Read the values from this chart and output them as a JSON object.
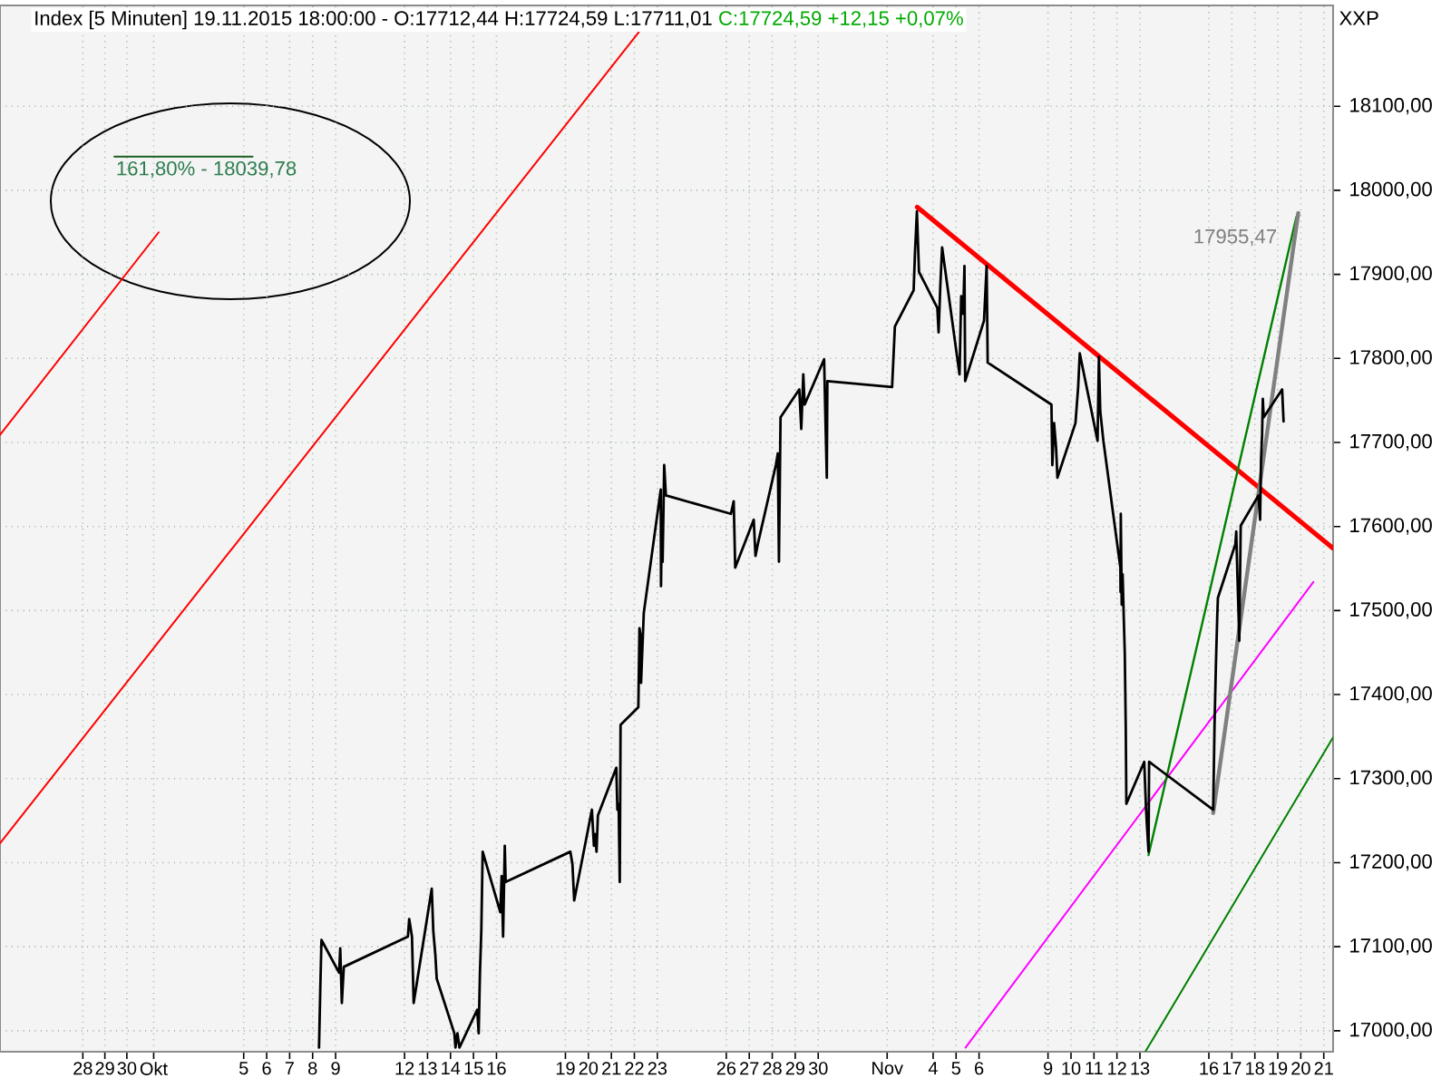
{
  "chart_data": {
    "type": "line",
    "title": "Index [5 Minuten] 19.11.2015 18:00:00 - O:17712,44 H:17724,59 L:17711,01",
    "subtitle": "C:17724,59 +12,15 +0,07%",
    "ylabel": "XXP",
    "xlim": [
      "2015-09-24T21:30",
      "2015-11-21T21:45"
    ],
    "ylim": [
      16975,
      18220
    ],
    "xticks": [
      {
        "value": "2015-09-28T12:00",
        "label": "28"
      },
      {
        "value": "2015-09-29T11:00",
        "label": "29"
      },
      {
        "value": "2015-09-30T10:00",
        "label": "30"
      },
      {
        "value": "2015-10-01T14:00",
        "label": "Okt"
      },
      {
        "value": "2015-10-05T12:00",
        "label": "5"
      },
      {
        "value": "2015-10-06T12:00",
        "label": "6"
      },
      {
        "value": "2015-10-07T12:00",
        "label": "7"
      },
      {
        "value": "2015-10-08T12:00",
        "label": "8"
      },
      {
        "value": "2015-10-09T12:00",
        "label": "9"
      },
      {
        "value": "2015-10-12T12:00",
        "label": "12"
      },
      {
        "value": "2015-10-13T12:00",
        "label": "13"
      },
      {
        "value": "2015-10-14T12:00",
        "label": "14"
      },
      {
        "value": "2015-10-15T12:00",
        "label": "15"
      },
      {
        "value": "2015-10-16T12:00",
        "label": "16"
      },
      {
        "value": "2015-10-19T12:00",
        "label": "19"
      },
      {
        "value": "2015-10-20T12:00",
        "label": "20"
      },
      {
        "value": "2015-10-21T12:00",
        "label": "21"
      },
      {
        "value": "2015-10-22T12:00",
        "label": "22"
      },
      {
        "value": "2015-10-23T12:00",
        "label": "23"
      },
      {
        "value": "2015-10-26T12:00",
        "label": "26"
      },
      {
        "value": "2015-10-27T12:00",
        "label": "27"
      },
      {
        "value": "2015-10-28T12:00",
        "label": "28"
      },
      {
        "value": "2015-10-29T12:00",
        "label": "29"
      },
      {
        "value": "2015-10-30T12:00",
        "label": "30"
      },
      {
        "value": "2015-11-02T12:00",
        "label": "Nov"
      },
      {
        "value": "2015-11-04T12:00",
        "label": "4"
      },
      {
        "value": "2015-11-05T12:00",
        "label": "5"
      },
      {
        "value": "2015-11-06T12:00",
        "label": "6"
      },
      {
        "value": "2015-11-09T12:00",
        "label": "9"
      },
      {
        "value": "2015-11-10T12:00",
        "label": "10"
      },
      {
        "value": "2015-11-11T12:00",
        "label": "11"
      },
      {
        "value": "2015-11-12T12:00",
        "label": "12"
      },
      {
        "value": "2015-11-13T12:00",
        "label": "13"
      },
      {
        "value": "2015-11-16T12:00",
        "label": "16"
      },
      {
        "value": "2015-11-17T12:00",
        "label": "17"
      },
      {
        "value": "2015-11-18T12:00",
        "label": "18"
      },
      {
        "value": "2015-11-19T12:00",
        "label": "19"
      },
      {
        "value": "2015-11-20T12:00",
        "label": "20"
      },
      {
        "value": "2015-11-21T12:00",
        "label": "21"
      }
    ],
    "yticks": [
      {
        "value": 17000,
        "label": "17000,00"
      },
      {
        "value": 17100,
        "label": "17100,00"
      },
      {
        "value": 17200,
        "label": "17200,00"
      },
      {
        "value": 17300,
        "label": "17300,00"
      },
      {
        "value": 17400,
        "label": "17400,00"
      },
      {
        "value": 17500,
        "label": "17500,00"
      },
      {
        "value": 17600,
        "label": "17600,00"
      },
      {
        "value": 17700,
        "label": "17700,00"
      },
      {
        "value": 17800,
        "label": "17800,00"
      },
      {
        "value": 17900,
        "label": "17900,00"
      },
      {
        "value": 18000,
        "label": "18000,00"
      },
      {
        "value": 18100,
        "label": "18100,00"
      }
    ],
    "grid": true,
    "series": [
      {
        "color": "#ff0000",
        "x": [
          "2015-11-03T19:25",
          "2015-11-21T21:45"
        ],
        "values": [
          17980,
          17574
        ]
      },
      {
        "color": "#ff0000",
        "x": [
          "2015-09-24T21:30",
          "2015-10-22T16:30"
        ],
        "values": [
          17223,
          18188
        ]
      },
      {
        "color": "#ff0000",
        "x": [
          "2015-09-24T21:30",
          "2015-10-01T19:10"
        ],
        "values": [
          17709,
          17950
        ]
      },
      {
        "color": "#ff00ff",
        "x": [
          "2015-11-05T21:55",
          "2015-11-21T01:10"
        ],
        "values": [
          16980,
          17534
        ]
      },
      {
        "color": "#008000",
        "x": [
          "2015-11-13T18:10",
          "2015-11-21T21:45"
        ],
        "values": [
          16976,
          17349
        ]
      },
      {
        "color": "#008000",
        "x": [
          "2015-11-13T21:00",
          "2015-11-20T07:20"
        ],
        "values": [
          17209,
          17968
        ]
      },
      {
        "color": "#808080",
        "x": [
          "2015-11-16T16:30",
          "2015-11-20T09:20"
        ],
        "values": [
          17259,
          17973
        ]
      },
      {
        "color": "#1b5e20",
        "x": [
          "2015-09-29T20:55",
          "2015-10-05T21:15"
        ],
        "values": [
          18040,
          18040
        ]
      },
      {
        "color": "#000000",
        "x": [
          "2015-10-08T18:40",
          "2015-10-08T20:05",
          "2015-10-08T21:15",
          "2015-10-09T15:40",
          "2015-10-09T16:50",
          "2015-10-09T18:30",
          "2015-10-09T20:35",
          "2015-10-12T15:30",
          "2015-10-12T16:50",
          "2015-10-12T19:45",
          "2015-10-12T21:30",
          "2015-10-13T16:25",
          "2015-10-13T18:00",
          "2015-10-13T20:10",
          "2015-10-13T21:35",
          "2015-10-14T16:00",
          "2015-10-14T17:10",
          "2015-10-14T19:15",
          "2015-10-14T21:20",
          "2015-10-15T15:55",
          "2015-10-15T17:25",
          "2015-10-15T18:45",
          "2015-10-15T20:10",
          "2015-10-15T21:35",
          "2015-10-16T16:00",
          "2015-10-16T17:25",
          "2015-10-16T18:55",
          "2015-10-16T20:40",
          "2015-10-16T21:35",
          "2015-10-19T17:10",
          "2015-10-19T19:20",
          "2015-10-19T21:10",
          "2015-10-20T15:40",
          "2015-10-20T17:45",
          "2015-10-20T19:05",
          "2015-10-20T20:30",
          "2015-10-20T21:55",
          "2015-10-21T17:10",
          "2015-10-21T18:15",
          "2015-10-21T19:35",
          "2015-10-21T20:45",
          "2015-10-21T21:35",
          "2015-10-22T16:10",
          "2015-10-22T17:20",
          "2015-10-22T18:25",
          "2015-10-22T19:00",
          "2015-10-22T21:50",
          "2015-10-23T15:35",
          "2015-10-23T15:50",
          "2015-10-23T16:25",
          "2015-10-23T17:30",
          "2015-10-23T19:10",
          "2015-10-23T20:55",
          "2015-10-26T16:50",
          "2015-10-26T19:45",
          "2015-10-26T21:20",
          "2015-10-27T16:40",
          "2015-10-27T18:30",
          "2015-10-27T20:55",
          "2015-10-28T15:45",
          "2015-10-28T17:50",
          "2015-10-28T19:00",
          "2015-10-28T20:40",
          "2015-10-29T16:15",
          "2015-10-29T18:20",
          "2015-10-29T20:25",
          "2015-10-29T21:50",
          "2015-10-30T18:10",
          "2015-10-30T19:30",
          "2015-10-30T21:00",
          "2015-10-30T21:35",
          "2015-11-02T17:10",
          "2015-11-02T20:05",
          "2015-11-03T15:40",
          "2015-11-03T17:00",
          "2015-11-03T19:05",
          "2015-11-03T21:15",
          "2015-11-04T16:25",
          "2015-11-04T17:45",
          "2015-11-04T19:35",
          "2015-11-04T21:25",
          "2015-11-05T15:35",
          "2015-11-05T17:20",
          "2015-11-05T19:25",
          "2015-11-05T20:45",
          "2015-11-05T21:30",
          "2015-11-06T17:10",
          "2015-11-06T19:55",
          "2015-11-06T21:00",
          "2015-11-09T15:35",
          "2015-11-09T16:30",
          "2015-11-09T18:20",
          "2015-11-09T20:25",
          "2015-11-09T21:50",
          "2015-11-10T16:40",
          "2015-11-10T19:30",
          "2015-11-10T21:10",
          "2015-11-11T15:45",
          "2015-11-11T17:10",
          "2015-11-11T18:35",
          "2015-11-11T21:50",
          "2015-11-12T15:35",
          "2015-11-12T15:45",
          "2015-11-12T16:00",
          "2015-11-12T17:00",
          "2015-11-12T17:55",
          "2015-11-12T19:05",
          "2015-11-12T20:10",
          "2015-11-12T21:10",
          "2015-11-12T21:50",
          "2015-11-13T16:30",
          "2015-11-13T17:25",
          "2015-11-13T18:25",
          "2015-11-13T19:30",
          "2015-11-13T21:00",
          "2015-11-13T21:35",
          "2015-11-16T16:30",
          "2015-11-16T17:55",
          "2015-11-16T19:20",
          "2015-11-16T20:45",
          "2015-11-16T21:25",
          "2015-11-17T15:40",
          "2015-11-17T16:35",
          "2015-11-17T17:45",
          "2015-11-17T19:05",
          "2015-11-17T19:45",
          "2015-11-17T21:15",
          "2015-11-18T15:50",
          "2015-11-18T17:30",
          "2015-11-18T18:30",
          "2015-11-18T19:35",
          "2015-11-18T20:20",
          "2015-11-18T21:15",
          "2015-11-19T16:30",
          "2015-11-19T18:00"
        ],
        "values": [
          16980,
          17054,
          17108,
          17069,
          17098,
          17033,
          17076,
          17112,
          17133,
          17112,
          17033,
          17169,
          17119,
          17090,
          17062,
          16997,
          16980,
          16997,
          16980,
          17025,
          16997,
          17069,
          17119,
          17213,
          17141,
          17184,
          17112,
          17220,
          17177,
          17213,
          17198,
          17155,
          17263,
          17220,
          17234,
          17213,
          17256,
          17313,
          17263,
          17270,
          17177,
          17364,
          17385,
          17479,
          17471,
          17414,
          17497,
          17644,
          17529,
          17579,
          17558,
          17673,
          17637,
          17615,
          17630,
          17551,
          17608,
          17565,
          17579,
          17673,
          17687,
          17558,
          17730,
          17763,
          17716,
          17781,
          17745,
          17799,
          17730,
          17658,
          17773,
          17766,
          17838,
          17881,
          17924,
          17975,
          17903,
          17860,
          17831,
          17888,
          17932,
          17781,
          17874,
          17853,
          17910,
          17773,
          17845,
          17910,
          17795,
          17745,
          17673,
          17723,
          17694,
          17658,
          17723,
          17766,
          17806,
          17702,
          17802,
          17737,
          17702,
          17551,
          17522,
          17615,
          17507,
          17543,
          17493,
          17450,
          17364,
          17270,
          17320,
          17292,
          17263,
          17241,
          17213,
          17320,
          17263,
          17364,
          17435,
          17493,
          17515,
          17579,
          17594,
          17543,
          17493,
          17464,
          17601,
          17637,
          17608,
          17680,
          17709,
          17752,
          17730,
          17763,
          17725
        ]
      }
    ],
    "annotations": [
      "161,80% - 18039,78",
      "17955,47"
    ]
  }
}
